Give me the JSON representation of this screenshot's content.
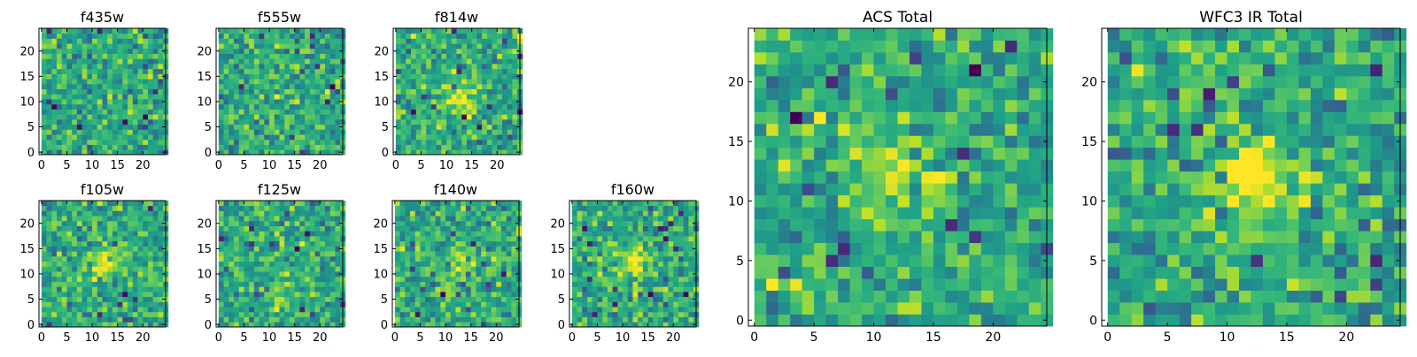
{
  "chart_data": [
    {
      "type": "heatmap",
      "title": "f435w",
      "colormap": "viridis",
      "xlim": [
        -0.5,
        24.5
      ],
      "ylim": [
        -0.5,
        24.5
      ],
      "grid_size": [
        25,
        25
      ],
      "xticks": [
        "0",
        "5",
        "10",
        "15",
        "20"
      ],
      "yticks": [
        "0",
        "5",
        "10",
        "15",
        "20"
      ],
      "seed": 11,
      "source_peak": 0.0,
      "source_center": [
        12,
        12
      ]
    },
    {
      "type": "heatmap",
      "title": "f555w",
      "colormap": "viridis",
      "xlim": [
        -0.5,
        24.5
      ],
      "ylim": [
        -0.5,
        24.5
      ],
      "grid_size": [
        25,
        25
      ],
      "xticks": [
        "0",
        "5",
        "10",
        "15",
        "20"
      ],
      "yticks": [
        "0",
        "5",
        "10",
        "15",
        "20"
      ],
      "seed": 23,
      "source_peak": 0.05,
      "source_center": [
        12,
        12
      ]
    },
    {
      "type": "heatmap",
      "title": "f814w",
      "colormap": "viridis",
      "xlim": [
        -0.5,
        24.5
      ],
      "ylim": [
        -0.5,
        24.5
      ],
      "grid_size": [
        25,
        25
      ],
      "xticks": [
        "0",
        "5",
        "10",
        "15",
        "20"
      ],
      "yticks": [
        "0",
        "5",
        "10",
        "15",
        "20"
      ],
      "seed": 37,
      "source_peak": 0.3,
      "source_center": [
        12,
        11
      ]
    },
    {
      "type": "heatmap",
      "title": "f105w",
      "colormap": "viridis",
      "xlim": [
        -0.5,
        24.5
      ],
      "ylim": [
        -0.5,
        24.5
      ],
      "grid_size": [
        25,
        25
      ],
      "xticks": [
        "0",
        "5",
        "10",
        "15",
        "20"
      ],
      "yticks": [
        "0",
        "5",
        "10",
        "15",
        "20"
      ],
      "seed": 41,
      "source_peak": 0.3,
      "source_center": [
        12,
        12
      ]
    },
    {
      "type": "heatmap",
      "title": "f125w",
      "colormap": "viridis",
      "xlim": [
        -0.5,
        24.5
      ],
      "ylim": [
        -0.5,
        24.5
      ],
      "grid_size": [
        25,
        25
      ],
      "xticks": [
        "0",
        "5",
        "10",
        "15",
        "20"
      ],
      "yticks": [
        "0",
        "5",
        "10",
        "15",
        "20"
      ],
      "seed": 53,
      "source_peak": 0.12,
      "source_center": [
        12,
        7
      ]
    },
    {
      "type": "heatmap",
      "title": "f140w",
      "colormap": "viridis",
      "xlim": [
        -0.5,
        24.5
      ],
      "ylim": [
        -0.5,
        24.5
      ],
      "grid_size": [
        25,
        25
      ],
      "xticks": [
        "0",
        "5",
        "10",
        "15",
        "20"
      ],
      "yticks": [
        "0",
        "5",
        "10",
        "15",
        "20"
      ],
      "seed": 67,
      "source_peak": 0.25,
      "source_center": [
        12,
        12
      ]
    },
    {
      "type": "heatmap",
      "title": "f160w",
      "colormap": "viridis",
      "xlim": [
        -0.5,
        24.5
      ],
      "ylim": [
        -0.5,
        24.5
      ],
      "grid_size": [
        25,
        25
      ],
      "xticks": [
        "0",
        "5",
        "10",
        "15",
        "20"
      ],
      "yticks": [
        "0",
        "5",
        "10",
        "15",
        "20"
      ],
      "seed": 79,
      "source_peak": 0.4,
      "source_center": [
        12,
        12
      ]
    },
    {
      "type": "heatmap",
      "title": "ACS Total",
      "colormap": "viridis",
      "xlim": [
        -0.5,
        24.5
      ],
      "ylim": [
        -0.5,
        24.5
      ],
      "grid_size": [
        25,
        25
      ],
      "xticks": [
        "0",
        "5",
        "10",
        "15",
        "20"
      ],
      "yticks": [
        "0",
        "5",
        "10",
        "15",
        "20"
      ],
      "seed": 97,
      "source_peak": 0.35,
      "source_center": [
        12,
        12
      ]
    },
    {
      "type": "heatmap",
      "title": "WFC3 IR Total",
      "colormap": "viridis",
      "xlim": [
        -0.5,
        24.5
      ],
      "ylim": [
        -0.5,
        24.5
      ],
      "grid_size": [
        25,
        25
      ],
      "xticks": [
        "0",
        "5",
        "10",
        "15",
        "20"
      ],
      "yticks": [
        "0",
        "5",
        "10",
        "15",
        "20"
      ],
      "seed": 101,
      "source_peak": 0.5,
      "source_center": [
        12,
        12
      ]
    }
  ]
}
